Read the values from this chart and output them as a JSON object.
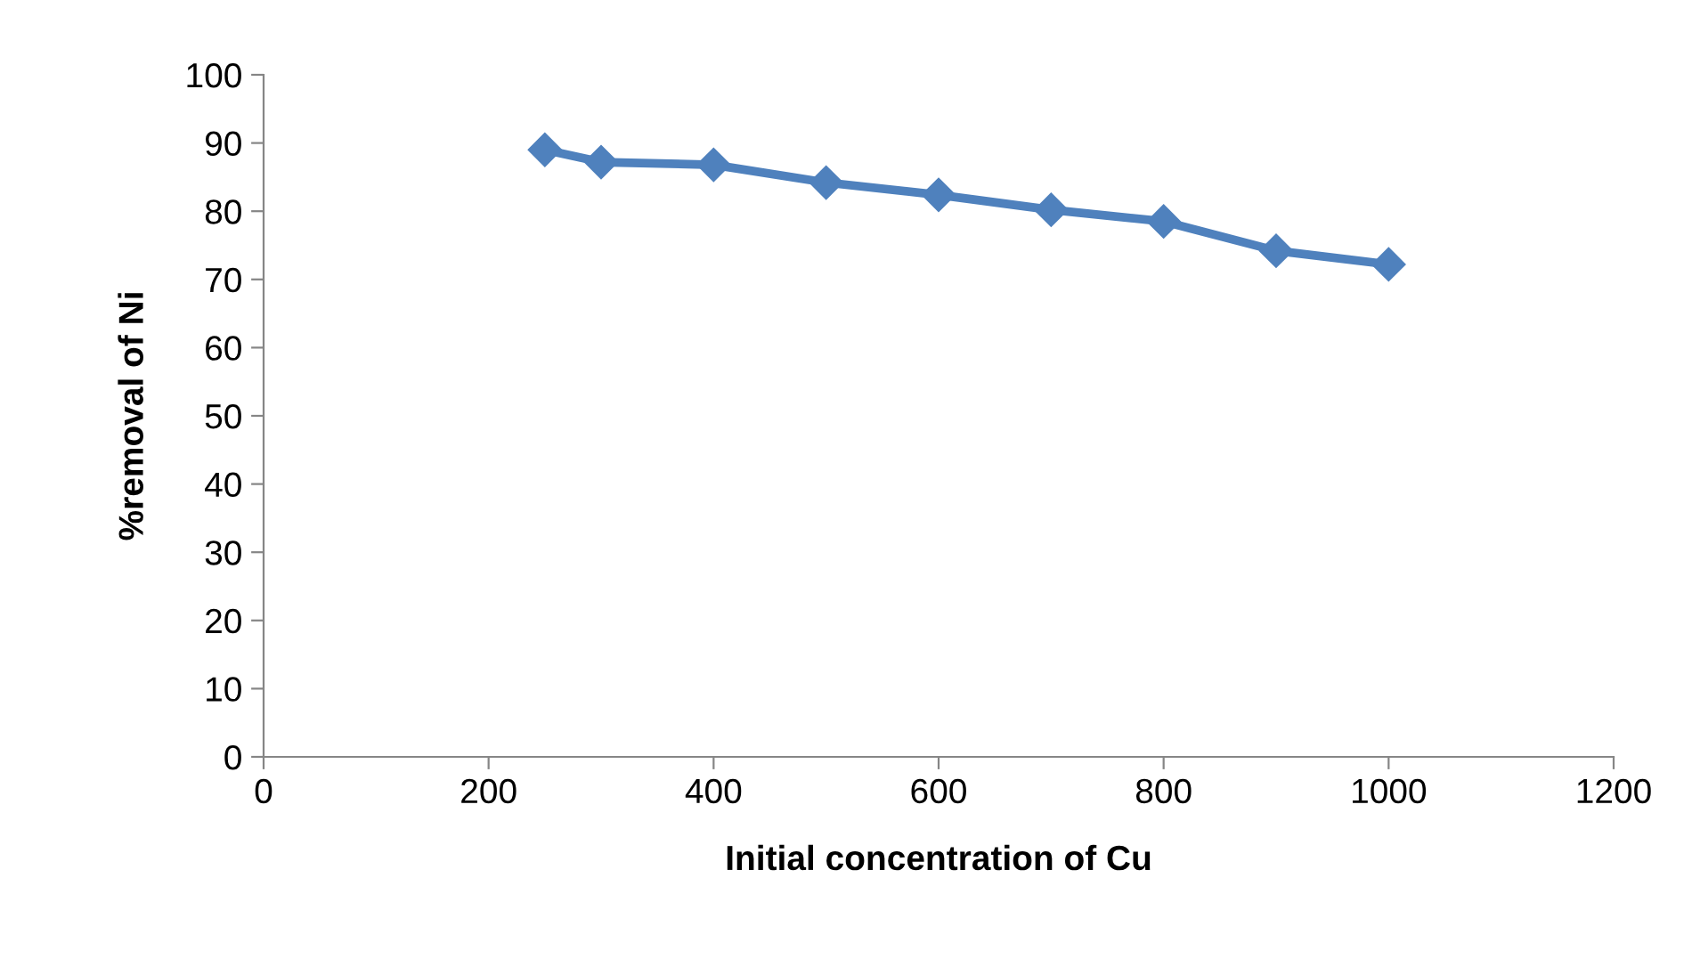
{
  "chart_data": {
    "type": "line",
    "xlabel": "Initial concentration of Cu",
    "ylabel": "%removal of Ni",
    "x": [
      250,
      300,
      400,
      500,
      600,
      700,
      800,
      900,
      1000
    ],
    "series": [
      {
        "color": "#4f81bd",
        "values": [
          89.0,
          87.2,
          86.8,
          84.2,
          82.4,
          80.2,
          78.5,
          74.2,
          72.2
        ]
      }
    ],
    "xlim": [
      0,
      1200
    ],
    "xticks": [
      0,
      200,
      400,
      600,
      800,
      1000,
      1200
    ],
    "ylim": [
      0,
      100
    ],
    "yticks": [
      0,
      10,
      20,
      30,
      40,
      50,
      60,
      70,
      80,
      90,
      100
    ],
    "marker": "diamond",
    "line_style": "solid",
    "grid": false,
    "legend": false
  }
}
